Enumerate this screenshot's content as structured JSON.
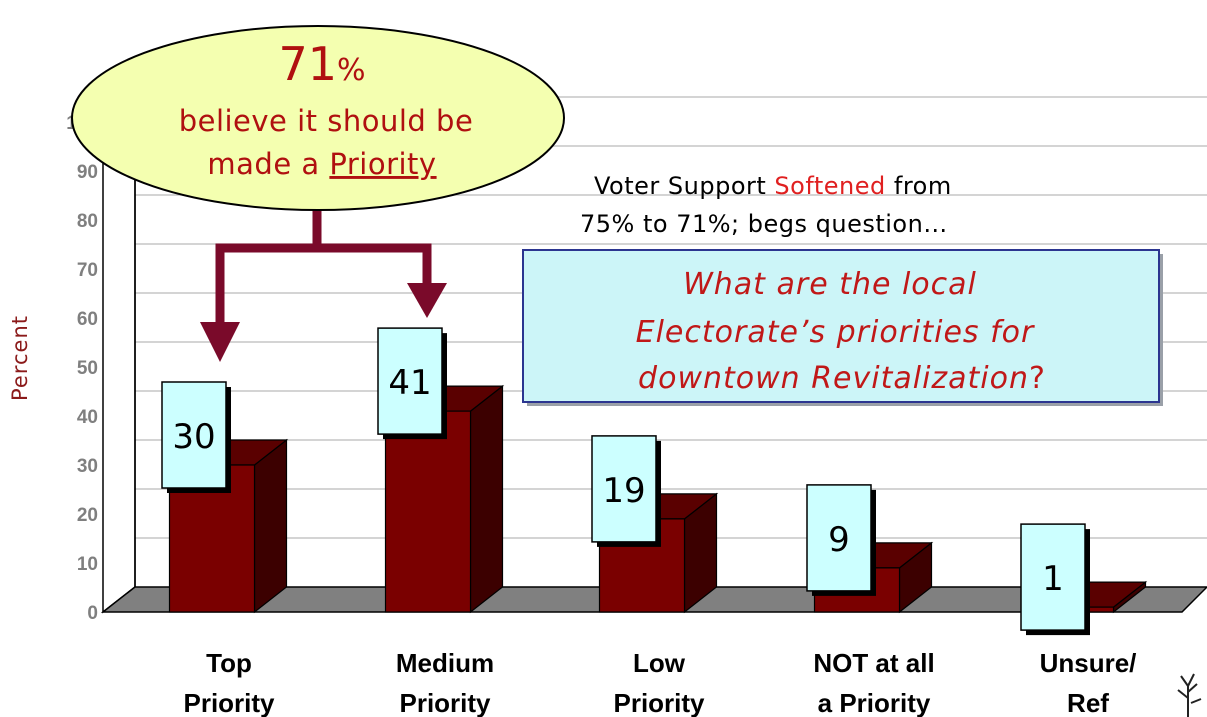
{
  "chart_data": {
    "type": "bar",
    "categories": [
      [
        "Top",
        "Priority"
      ],
      [
        "Medium",
        "Priority"
      ],
      [
        "Low",
        "Priority"
      ],
      [
        "NOT at all",
        "a Priority"
      ],
      [
        "Unsure/",
        "Ref"
      ]
    ],
    "values": [
      30,
      41,
      19,
      9,
      1
    ],
    "data_labels": [
      "30",
      "41",
      "19",
      "9",
      "1"
    ],
    "ylabel": "Percent",
    "ylim": [
      0,
      100
    ],
    "yticks": [
      "0",
      "10",
      "20",
      "30",
      "40",
      "50",
      "60",
      "70",
      "80",
      "90",
      "100"
    ],
    "grid": true,
    "style": "3d-bar",
    "colors": {
      "bar_front": "#7a0000",
      "bar_top": "#5a0000",
      "bar_side": "#3c0000",
      "floor": "#808080",
      "label_box": "#ccffff"
    }
  },
  "callout": {
    "big": "71",
    "pct": "%",
    "line1": "believe it should be",
    "line2_prefix": "made a ",
    "line2_underlined": "Priority",
    "colors": {
      "fill": "#f4ffb0",
      "arrow": "#7a0a2a"
    }
  },
  "note": {
    "line1_a": "Voter Support ",
    "line1_red": "Softened",
    "line1_b": " from",
    "line2": "75% to 71%;  begs question…"
  },
  "question_box": {
    "line1": "What are the local",
    "line2_a": "Electorate’s priorities for",
    "line3_a": "downtown Revitalization",
    "line3_b": "?",
    "colors": {
      "fill": "#ccf5f8",
      "border": "#2b3590"
    }
  }
}
